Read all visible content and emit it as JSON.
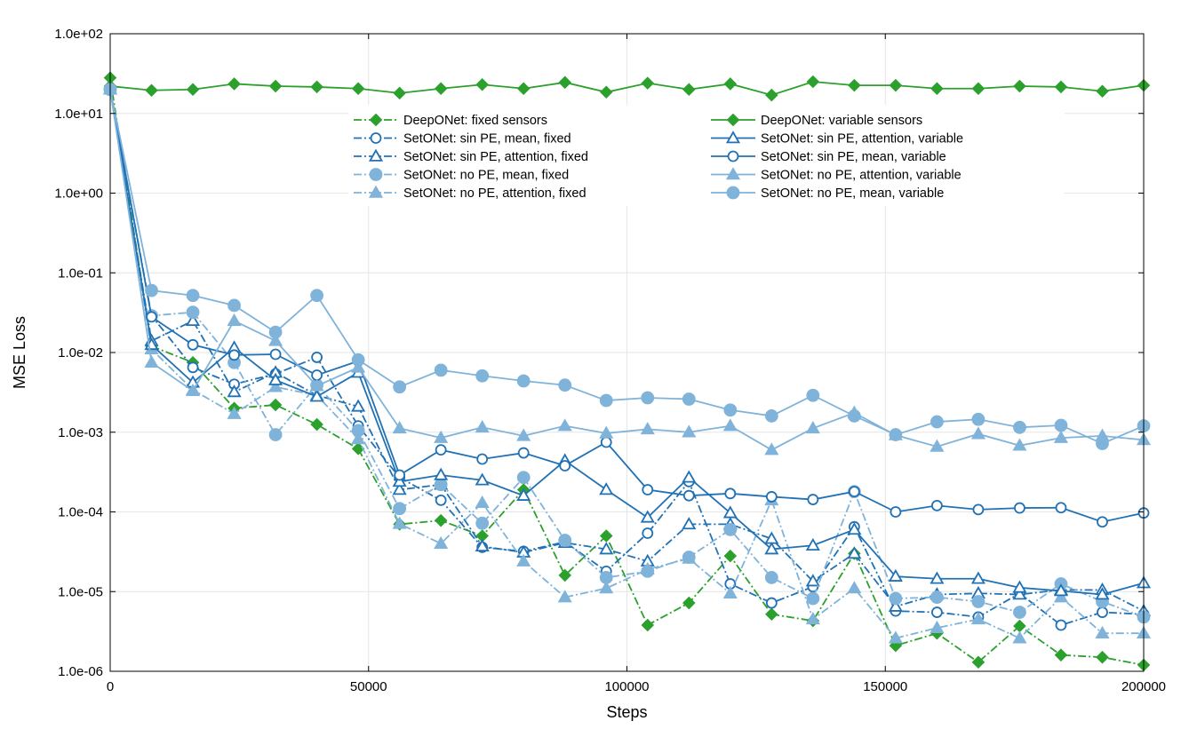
{
  "chart_data": {
    "type": "line",
    "xlabel": "Steps",
    "ylabel": "MSE Loss",
    "xlim": [
      0,
      200000
    ],
    "ylim": [
      1e-06,
      100
    ],
    "yscale": "log",
    "grid": true,
    "legend_position": "upper-center, two columns",
    "x_ticks": [
      0,
      50000,
      100000,
      150000,
      200000
    ],
    "x_tick_labels": [
      "0",
      "50000",
      "100000",
      "150000",
      "200000"
    ],
    "y_ticks": [
      1e-06,
      1e-05,
      0.0001,
      0.001,
      0.01,
      0.1,
      1,
      10,
      100
    ],
    "y_tick_labels": [
      "1.0e-06",
      "1.0e-05",
      "1.0e-04",
      "1.0e-03",
      "1.0e-02",
      "1.0e-01",
      "1.0e+00",
      "1.0e+01",
      "1.0e+02"
    ],
    "x": [
      0,
      8000,
      16000,
      24000,
      32000,
      40000,
      48000,
      56000,
      64000,
      72000,
      80000,
      88000,
      96000,
      104000,
      112000,
      120000,
      128000,
      136000,
      144000,
      152000,
      160000,
      168000,
      176000,
      184000,
      192000,
      200000
    ],
    "series": [
      {
        "name": "DeepONet: fixed sensors",
        "color": "#2ca02c",
        "linestyle": "dashdot",
        "marker": "diamond",
        "fill": "filled",
        "legend_col": 0,
        "values": [
          28,
          0.012,
          0.0075,
          0.002,
          0.0022,
          0.00125,
          0.00062,
          7e-05,
          7.8e-05,
          5e-05,
          0.00019,
          1.6e-05,
          5e-05,
          3.8e-06,
          7.2e-06,
          2.8e-05,
          5.2e-06,
          4.3e-06,
          3e-05,
          2.1e-06,
          3e-06,
          1.3e-06,
          3.7e-06,
          1.6e-06,
          1.5e-06,
          1.2e-06
        ]
      },
      {
        "name": "SetONet: sin PE, mean, fixed",
        "color": "#2171b5",
        "linestyle": "dashdot",
        "marker": "circle",
        "fill": "open",
        "legend_col": 0,
        "values": [
          20,
          0.029,
          0.0065,
          0.004,
          0.0054,
          0.0087,
          0.0012,
          0.00027,
          0.00014,
          3.6e-05,
          3.2e-05,
          4.2e-05,
          1.8e-05,
          5.4e-05,
          0.00024,
          1.25e-05,
          7.2e-06,
          1.15e-05,
          6.5e-05,
          5.7e-06,
          5.5e-06,
          4.8e-06,
          9.5e-06,
          3.8e-06,
          5.5e-06,
          5.2e-06
        ]
      },
      {
        "name": "SetONet: sin PE, attention, fixed",
        "color": "#2171b5",
        "linestyle": "dashdot",
        "marker": "triangle",
        "fill": "open",
        "legend_col": 0,
        "values": [
          20,
          0.014,
          0.025,
          0.0032,
          0.0056,
          0.0029,
          0.0021,
          0.00019,
          0.00022,
          3.7e-05,
          3.1e-05,
          4.1e-05,
          3.4e-05,
          2.4e-05,
          7e-05,
          7e-05,
          4.6e-05,
          1.35e-05,
          3e-05,
          6.5e-06,
          9.2e-06,
          9.5e-06,
          9.2e-06,
          1.05e-05,
          1.05e-05,
          5.7e-06
        ]
      },
      {
        "name": "SetONet: no PE, mean, fixed",
        "color": "#7fb3da",
        "linestyle": "dashdot",
        "marker": "circle",
        "fill": "filled",
        "legend_col": 0,
        "values": [
          20,
          0.029,
          0.032,
          0.0075,
          0.00093,
          0.0039,
          0.00105,
          0.00011,
          0.00022,
          7.2e-05,
          0.00027,
          4.4e-05,
          1.5e-05,
          1.8e-05,
          2.7e-05,
          6e-05,
          1.5e-05,
          8.2e-06,
          0.00018,
          8.2e-06,
          8.5e-06,
          7.5e-06,
          5.5e-06,
          1.25e-05,
          7.5e-06,
          4.8e-06
        ]
      },
      {
        "name": "SetONet: no PE, attention, fixed",
        "color": "#7fb3da",
        "linestyle": "dashdot",
        "marker": "triangle",
        "fill": "filled",
        "legend_col": 0,
        "values": [
          20,
          0.011,
          0.0034,
          0.0017,
          0.0037,
          0.0029,
          0.00082,
          7.1e-05,
          4e-05,
          0.00013,
          2.4e-05,
          8.5e-06,
          1.1e-05,
          1.9e-05,
          2.6e-05,
          9.5e-06,
          0.00014,
          4.5e-06,
          1.1e-05,
          2.6e-06,
          3.5e-06,
          4.5e-06,
          2.6e-06,
          8.5e-06,
          3e-06,
          3e-06
        ]
      },
      {
        "name": "DeepONet: variable sensors",
        "color": "#2ca02c",
        "linestyle": "solid",
        "marker": "diamond",
        "fill": "filled",
        "legend_col": 1,
        "values": [
          22,
          19.5,
          20,
          23.5,
          22,
          21.5,
          20.5,
          18,
          20.5,
          23,
          20.5,
          24.5,
          18.5,
          24,
          20,
          23.5,
          17,
          25,
          22.5,
          22.5,
          20.5,
          20.5,
          22,
          21.5,
          19,
          22.5
        ]
      },
      {
        "name": "SetONet: sin PE, attention, variable",
        "color": "#2171b5",
        "linestyle": "solid",
        "marker": "triangle",
        "fill": "open",
        "legend_col": 1,
        "values": [
          20,
          0.0125,
          0.0042,
          0.0115,
          0.0045,
          0.0028,
          0.0056,
          0.00024,
          0.00029,
          0.00025,
          0.00016,
          0.00044,
          0.00019,
          8.5e-05,
          0.00027,
          9.7e-05,
          3.4e-05,
          3.8e-05,
          6e-05,
          1.55e-05,
          1.45e-05,
          1.45e-05,
          1.12e-05,
          1.02e-05,
          9.2e-06,
          1.28e-05
        ]
      },
      {
        "name": "SetONet: sin PE, mean, variable",
        "color": "#2171b5",
        "linestyle": "solid",
        "marker": "circle",
        "fill": "open",
        "legend_col": 1,
        "values": [
          20,
          0.028,
          0.0125,
          0.0093,
          0.0095,
          0.0052,
          0.0078,
          0.00029,
          0.0006,
          0.00046,
          0.00055,
          0.00038,
          0.00075,
          0.00019,
          0.00016,
          0.00017,
          0.000155,
          0.000143,
          0.00018,
          0.0001,
          0.00012,
          0.000107,
          0.000112,
          0.000113,
          7.5e-05,
          9.7e-05
        ]
      },
      {
        "name": "SetONet: no PE, attention, variable",
        "color": "#7fb3da",
        "linestyle": "solid",
        "marker": "triangle",
        "fill": "filled",
        "legend_col": 1,
        "values": [
          20,
          0.0075,
          0.0033,
          0.025,
          0.014,
          0.0038,
          0.0065,
          0.00112,
          0.00085,
          0.00115,
          0.0009,
          0.0012,
          0.00097,
          0.00109,
          0.001,
          0.0012,
          0.0006,
          0.00112,
          0.00175,
          0.00092,
          0.00066,
          0.00095,
          0.00068,
          0.00085,
          0.0009,
          0.0008
        ]
      },
      {
        "name": "SetONet: no PE, mean, variable",
        "color": "#7fb3da",
        "linestyle": "solid",
        "marker": "circle",
        "fill": "filled",
        "legend_col": 1,
        "values": [
          20,
          0.06,
          0.052,
          0.039,
          0.018,
          0.052,
          0.0081,
          0.0037,
          0.006,
          0.0051,
          0.0044,
          0.0039,
          0.0025,
          0.0027,
          0.0026,
          0.0019,
          0.0016,
          0.0029,
          0.0016,
          0.00093,
          0.00135,
          0.00145,
          0.00115,
          0.00122,
          0.00072,
          0.0012
        ]
      }
    ]
  }
}
